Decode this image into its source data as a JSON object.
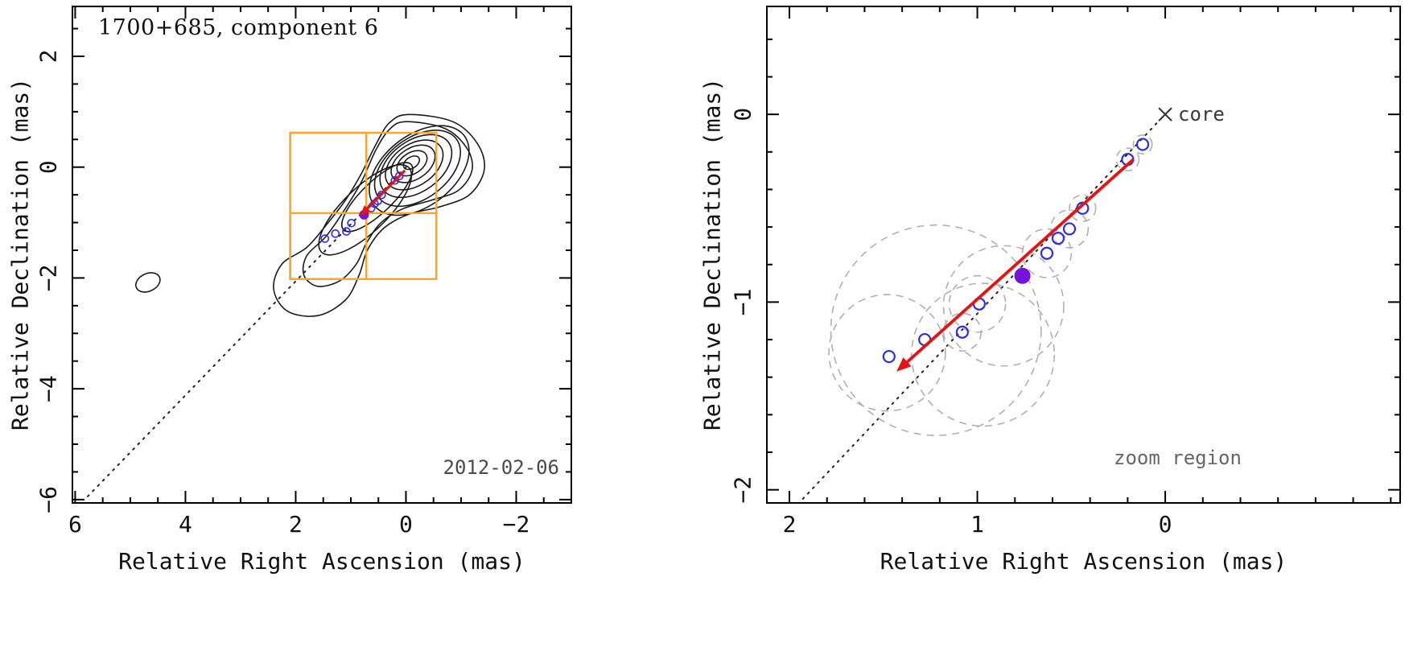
{
  "figure": {
    "background": "#ffffff"
  },
  "colors": {
    "contour": "#1a1a1a",
    "component_circle": "#2b2bee",
    "filled_component": "#7711dd",
    "arrow": "#e81212",
    "zoom_box": "#ffa526",
    "beam_circle": "#b0b0b0",
    "dotted_line": "#222222",
    "axis": "#000000",
    "core_marker": "#333333"
  },
  "chart_data": [
    {
      "id": "left",
      "type": "scatter",
      "title": "1700+685, component 6",
      "date_label": "2012-02-06",
      "xlabel": "Relative Right Ascension (mas)",
      "ylabel": "Relative Declination (mas)",
      "xlim": [
        6.05,
        -3.0
      ],
      "ylim": [
        -6.06,
        2.9
      ],
      "xticks": [
        6,
        4,
        2,
        0,
        -2
      ],
      "yticks": [
        2,
        0,
        -2,
        -4,
        -6
      ],
      "minor_step": 0.5,
      "grid": false,
      "legend": "none",
      "dotted_line": {
        "x1": 0.0,
        "y1": 0.0,
        "x2": 5.78,
        "y2": -5.95
      },
      "arrow": {
        "x1": 0.02,
        "y1": -0.06,
        "x2": 0.83,
        "y2": -0.88
      },
      "component_points": [
        [
          0.12,
          -0.16
        ],
        [
          0.2,
          -0.24
        ],
        [
          0.44,
          -0.5
        ],
        [
          0.51,
          -0.61
        ],
        [
          0.57,
          -0.66
        ],
        [
          0.63,
          -0.74
        ],
        [
          0.99,
          -1.01
        ],
        [
          1.08,
          -1.16
        ],
        [
          1.28,
          -1.2
        ],
        [
          1.47,
          -1.29
        ]
      ],
      "filled_point": [
        0.76,
        -0.86
      ],
      "zoom_boxes": [
        {
          "x1": 2.1,
          "y1": 0.62,
          "x2": -0.55,
          "y2": -2.02
        },
        {
          "x1": 2.1,
          "y1": 0.62,
          "x2": 0.72,
          "y2": -2.02
        },
        {
          "x1": 2.1,
          "y1": -0.83,
          "x2": -0.55,
          "y2": -2.02
        }
      ],
      "contour_ellipses": [
        {
          "cx": -0.1,
          "cy": 0.08,
          "rx": 0.16,
          "ry": 0.1,
          "rot": -33
        },
        {
          "cx": -0.11,
          "cy": 0.07,
          "rx": 0.3,
          "ry": 0.19,
          "rot": -33
        },
        {
          "cx": -0.13,
          "cy": 0.06,
          "rx": 0.44,
          "ry": 0.28,
          "rot": -34
        },
        {
          "cx": -0.15,
          "cy": 0.04,
          "rx": 0.58,
          "ry": 0.37,
          "rot": -35
        },
        {
          "cx": -0.18,
          "cy": 0.02,
          "rx": 0.73,
          "ry": 0.46,
          "rot": -36
        },
        {
          "cx": -0.21,
          "cy": -0.02,
          "rx": 0.88,
          "ry": 0.55,
          "rot": -37
        },
        {
          "cx": -0.24,
          "cy": -0.06,
          "rx": 1.03,
          "ry": 0.64,
          "rot": -38
        },
        {
          "cx": 0.52,
          "cy": -0.54,
          "rx": 0.85,
          "ry": 0.28,
          "rot": -44
        },
        {
          "cx": 0.74,
          "cy": -0.77,
          "rx": 1.1,
          "ry": 0.4,
          "rot": -44
        },
        {
          "cx": 4.68,
          "cy": -2.08,
          "rx": 0.23,
          "ry": 0.16,
          "rot": -25
        }
      ],
      "contour_paths": [
        [
          [
            -0.05,
            0.95
          ],
          [
            -0.85,
            0.82
          ],
          [
            -1.3,
            0.42
          ],
          [
            -1.42,
            -0.05
          ],
          [
            -1.15,
            -0.5
          ],
          [
            -0.6,
            -0.72
          ],
          [
            -0.05,
            -0.85
          ],
          [
            0.4,
            -1.1
          ],
          [
            0.7,
            -1.5
          ],
          [
            0.85,
            -1.95
          ],
          [
            1.1,
            -2.4
          ],
          [
            1.6,
            -2.68
          ],
          [
            2.15,
            -2.6
          ],
          [
            2.4,
            -2.2
          ],
          [
            2.25,
            -1.75
          ],
          [
            1.8,
            -1.45
          ],
          [
            1.45,
            -1.05
          ],
          [
            1.1,
            -0.6
          ],
          [
            0.8,
            -0.1
          ],
          [
            0.55,
            0.4
          ],
          [
            0.3,
            0.8
          ]
        ],
        [
          [
            0.0,
            0.82
          ],
          [
            -0.7,
            0.7
          ],
          [
            -1.1,
            0.35
          ],
          [
            -1.2,
            -0.05
          ],
          [
            -0.95,
            -0.42
          ],
          [
            -0.45,
            -0.6
          ],
          [
            0.05,
            -0.75
          ],
          [
            0.45,
            -1.0
          ],
          [
            0.72,
            -1.38
          ],
          [
            0.9,
            -1.75
          ],
          [
            1.2,
            -2.05
          ],
          [
            1.6,
            -2.15
          ],
          [
            1.85,
            -1.95
          ],
          [
            1.8,
            -1.6
          ],
          [
            1.45,
            -1.25
          ],
          [
            1.1,
            -0.75
          ],
          [
            0.8,
            -0.25
          ],
          [
            0.55,
            0.3
          ],
          [
            0.3,
            0.68
          ]
        ]
      ]
    },
    {
      "id": "right",
      "type": "scatter",
      "xlabel": "Relative Right Ascension (mas)",
      "ylabel": "Relative Declination (mas)",
      "xlim": [
        2.12,
        -1.25
      ],
      "ylim": [
        -2.07,
        0.575
      ],
      "xticks": [
        2,
        1,
        0
      ],
      "yticks": [
        0,
        -1,
        -2
      ],
      "minor_step": 0.2,
      "grid": false,
      "legend": "none",
      "core_label": "core",
      "zoom_label": "zoom region",
      "core": [
        0.0,
        0.0
      ],
      "dotted_line": {
        "x1": 0.02,
        "y1": -0.02,
        "x2": 1.93,
        "y2": -2.05
      },
      "arrow": {
        "x1": 0.17,
        "y1": -0.24,
        "x2": 1.43,
        "y2": -1.37
      },
      "component_points": [
        [
          0.12,
          -0.16
        ],
        [
          0.2,
          -0.24
        ],
        [
          0.44,
          -0.5
        ],
        [
          0.51,
          -0.61
        ],
        [
          0.57,
          -0.66
        ],
        [
          0.63,
          -0.74
        ],
        [
          0.99,
          -1.01
        ],
        [
          1.08,
          -1.16
        ],
        [
          1.28,
          -1.2
        ],
        [
          1.47,
          -1.29
        ]
      ],
      "filled_point": [
        0.76,
        -0.86
      ],
      "beam_circles": [
        {
          "cx": 1.22,
          "cy": -1.15,
          "r": 0.56
        },
        {
          "cx": 1.48,
          "cy": -1.27,
          "r": 0.31
        },
        {
          "cx": 0.97,
          "cy": -1.28,
          "r": 0.38
        },
        {
          "cx": 0.86,
          "cy": -1.02,
          "r": 0.32
        },
        {
          "cx": 1.0,
          "cy": -1.01,
          "r": 0.15
        },
        {
          "cx": 1.08,
          "cy": -1.16,
          "r": 0.1
        },
        {
          "cx": 0.63,
          "cy": -0.74,
          "r": 0.13
        },
        {
          "cx": 0.51,
          "cy": -0.61,
          "r": 0.1
        },
        {
          "cx": 0.44,
          "cy": -0.5,
          "r": 0.07
        },
        {
          "cx": 0.2,
          "cy": -0.24,
          "r": 0.06
        },
        {
          "cx": 0.12,
          "cy": -0.16,
          "r": 0.05
        }
      ]
    }
  ]
}
